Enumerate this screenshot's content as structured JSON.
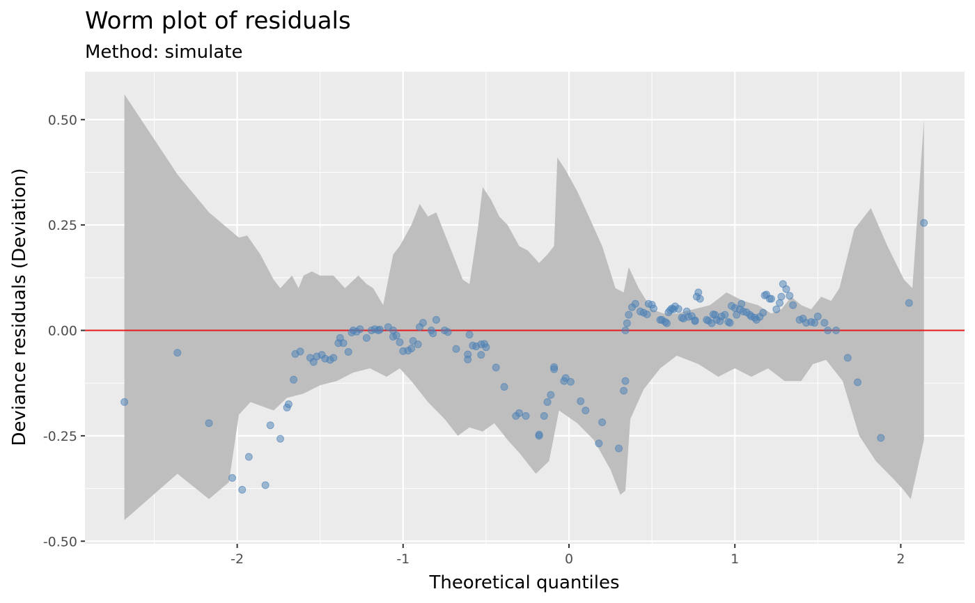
{
  "chart_data": {
    "type": "scatter",
    "title": "Worm plot of residuals",
    "subtitle": "Method: simulate",
    "xlabel": "Theoretical quantiles",
    "ylabel": "Deviance residuals (Deviation)",
    "xlim": [
      -2.9,
      2.4
    ],
    "ylim": [
      -0.5,
      0.61
    ],
    "x_ticks": [
      {
        "value": -2,
        "label": "-2"
      },
      {
        "value": -1,
        "label": "-1"
      },
      {
        "value": 0,
        "label": "0"
      },
      {
        "value": 1,
        "label": "1"
      },
      {
        "value": 2,
        "label": "2"
      }
    ],
    "y_ticks": [
      {
        "value": -0.5,
        "label": "-0.50"
      },
      {
        "value": -0.25,
        "label": "-0.25"
      },
      {
        "value": 0,
        "label": "0.00"
      },
      {
        "value": 0.25,
        "label": "0.25"
      },
      {
        "value": 0.5,
        "label": "0.50"
      }
    ],
    "grid": true,
    "reference_line": {
      "y": 0,
      "color": "#e31a1c"
    },
    "colors": {
      "panel": "#ebebeb",
      "grid": "#ffffff",
      "points": "#4a7fb5",
      "band": "#bebebe"
    },
    "band_upper": [
      [
        -2.68,
        0.56
      ],
      [
        -2.36,
        0.37
      ],
      [
        -2.17,
        0.28
      ],
      [
        -1.99,
        0.22
      ],
      [
        -1.94,
        0.225
      ],
      [
        -1.86,
        0.18
      ],
      [
        -1.78,
        0.12
      ],
      [
        -1.74,
        0.1
      ],
      [
        -1.67,
        0.13
      ],
      [
        -1.63,
        0.1
      ],
      [
        -1.6,
        0.13
      ],
      [
        -1.55,
        0.14
      ],
      [
        -1.5,
        0.13
      ],
      [
        -1.42,
        0.13
      ],
      [
        -1.35,
        0.1
      ],
      [
        -1.27,
        0.13
      ],
      [
        -1.22,
        0.11
      ],
      [
        -1.18,
        0.1
      ],
      [
        -1.12,
        0.06
      ],
      [
        -1.06,
        0.18
      ],
      [
        -1.02,
        0.2
      ],
      [
        -0.95,
        0.25
      ],
      [
        -0.9,
        0.3
      ],
      [
        -0.85,
        0.27
      ],
      [
        -0.8,
        0.28
      ],
      [
        -0.72,
        0.2
      ],
      [
        -0.64,
        0.12
      ],
      [
        -0.6,
        0.11
      ],
      [
        -0.55,
        0.24
      ],
      [
        -0.52,
        0.34
      ],
      [
        -0.47,
        0.31
      ],
      [
        -0.42,
        0.27
      ],
      [
        -0.37,
        0.25
      ],
      [
        -0.3,
        0.2
      ],
      [
        -0.25,
        0.19
      ],
      [
        -0.18,
        0.16
      ],
      [
        -0.13,
        0.18
      ],
      [
        -0.09,
        0.2
      ],
      [
        -0.07,
        0.41
      ],
      [
        -0.02,
        0.38
      ],
      [
        0.05,
        0.33
      ],
      [
        0.12,
        0.27
      ],
      [
        0.2,
        0.2
      ],
      [
        0.28,
        0.1
      ],
      [
        0.33,
        0.09
      ],
      [
        0.36,
        0.15
      ],
      [
        0.42,
        0.1
      ],
      [
        0.5,
        0.05
      ],
      [
        0.57,
        0.04
      ],
      [
        0.65,
        0.04
      ],
      [
        0.75,
        0.05
      ],
      [
        0.85,
        0.06
      ],
      [
        0.95,
        0.09
      ],
      [
        1.05,
        0.07
      ],
      [
        1.14,
        0.06
      ],
      [
        1.22,
        0.04
      ],
      [
        1.28,
        0.05
      ],
      [
        1.34,
        0.08
      ],
      [
        1.4,
        0.06
      ],
      [
        1.46,
        0.05
      ],
      [
        1.52,
        0.08
      ],
      [
        1.58,
        0.07
      ],
      [
        1.63,
        0.1
      ],
      [
        1.72,
        0.24
      ],
      [
        1.82,
        0.29
      ],
      [
        1.92,
        0.2
      ],
      [
        2.02,
        0.12
      ],
      [
        2.07,
        0.1
      ],
      [
        2.14,
        0.5
      ]
    ],
    "band_lower": [
      [
        -2.68,
        -0.45
      ],
      [
        -2.36,
        -0.34
      ],
      [
        -2.17,
        -0.4
      ],
      [
        -2.05,
        -0.36
      ],
      [
        -1.99,
        -0.2
      ],
      [
        -1.92,
        -0.17
      ],
      [
        -1.85,
        -0.18
      ],
      [
        -1.78,
        -0.19
      ],
      [
        -1.7,
        -0.16
      ],
      [
        -1.6,
        -0.15
      ],
      [
        -1.5,
        -0.13
      ],
      [
        -1.4,
        -0.12
      ],
      [
        -1.3,
        -0.1
      ],
      [
        -1.2,
        -0.09
      ],
      [
        -1.1,
        -0.11
      ],
      [
        -1.02,
        -0.09
      ],
      [
        -0.95,
        -0.12
      ],
      [
        -0.85,
        -0.17
      ],
      [
        -0.75,
        -0.21
      ],
      [
        -0.67,
        -0.25
      ],
      [
        -0.6,
        -0.23
      ],
      [
        -0.52,
        -0.24
      ],
      [
        -0.45,
        -0.22
      ],
      [
        -0.37,
        -0.26
      ],
      [
        -0.3,
        -0.29
      ],
      [
        -0.2,
        -0.34
      ],
      [
        -0.12,
        -0.31
      ],
      [
        -0.06,
        -0.19
      ],
      [
        0.05,
        -0.22
      ],
      [
        0.15,
        -0.26
      ],
      [
        0.25,
        -0.33
      ],
      [
        0.31,
        -0.39
      ],
      [
        0.34,
        -0.38
      ],
      [
        0.37,
        -0.21
      ],
      [
        0.45,
        -0.14
      ],
      [
        0.55,
        -0.09
      ],
      [
        0.65,
        -0.06
      ],
      [
        0.78,
        -0.08
      ],
      [
        0.9,
        -0.11
      ],
      [
        1.0,
        -0.09
      ],
      [
        1.1,
        -0.11
      ],
      [
        1.2,
        -0.09
      ],
      [
        1.3,
        -0.12
      ],
      [
        1.4,
        -0.12
      ],
      [
        1.47,
        -0.08
      ],
      [
        1.55,
        -0.07
      ],
      [
        1.65,
        -0.12
      ],
      [
        1.75,
        -0.25
      ],
      [
        1.85,
        -0.31
      ],
      [
        1.95,
        -0.35
      ],
      [
        2.02,
        -0.38
      ],
      [
        2.06,
        -0.4
      ],
      [
        2.1,
        -0.33
      ],
      [
        2.14,
        -0.26
      ]
    ],
    "points": [
      [
        -2.68,
        -0.17
      ],
      [
        -2.36,
        -0.053
      ],
      [
        -2.17,
        -0.22
      ],
      [
        -2.03,
        -0.35
      ],
      [
        -1.97,
        -0.378
      ],
      [
        -1.93,
        -0.3
      ],
      [
        -1.83,
        -0.367
      ],
      [
        -1.8,
        -0.225
      ],
      [
        -1.74,
        -0.257
      ],
      [
        -1.7,
        -0.183
      ],
      [
        -1.69,
        -0.175
      ],
      [
        -1.66,
        -0.117
      ],
      [
        -1.65,
        -0.056
      ],
      [
        -1.62,
        -0.05
      ],
      [
        -1.56,
        -0.065
      ],
      [
        -1.54,
        -0.075
      ],
      [
        -1.52,
        -0.062
      ],
      [
        -1.49,
        -0.058
      ],
      [
        -1.47,
        -0.067
      ],
      [
        -1.44,
        -0.07
      ],
      [
        -1.42,
        -0.065
      ],
      [
        -1.39,
        -0.03
      ],
      [
        -1.38,
        -0.018
      ],
      [
        -1.36,
        -0.03
      ],
      [
        -1.33,
        -0.051
      ],
      [
        -1.31,
        -0.005
      ],
      [
        -1.3,
        0.0
      ],
      [
        -1.28,
        -0.003
      ],
      [
        -1.26,
        0.003
      ],
      [
        -1.22,
        -0.018
      ],
      [
        -1.19,
        0.0
      ],
      [
        -1.17,
        0.003
      ],
      [
        -1.15,
        0.0
      ],
      [
        -1.14,
        0.002
      ],
      [
        -1.09,
        0.008
      ],
      [
        -1.06,
        -0.015
      ],
      [
        -1.06,
        0.0
      ],
      [
        -1.04,
        -0.012
      ],
      [
        -1.02,
        -0.028
      ],
      [
        -1.0,
        -0.049
      ],
      [
        -0.97,
        -0.048
      ],
      [
        -0.95,
        -0.043
      ],
      [
        -0.94,
        -0.025
      ],
      [
        -0.91,
        -0.033
      ],
      [
        -0.9,
        0.008
      ],
      [
        -0.88,
        0.018
      ],
      [
        -0.83,
        0.0
      ],
      [
        -0.82,
        -0.007
      ],
      [
        -0.8,
        0.025
      ],
      [
        -0.75,
        0.0
      ],
      [
        -0.73,
        -0.004
      ],
      [
        -0.68,
        -0.044
      ],
      [
        -0.61,
        -0.057
      ],
      [
        -0.61,
        -0.069
      ],
      [
        -0.6,
        -0.01
      ],
      [
        -0.58,
        -0.036
      ],
      [
        -0.56,
        -0.038
      ],
      [
        -0.53,
        -0.058
      ],
      [
        -0.53,
        -0.033
      ],
      [
        -0.51,
        -0.032
      ],
      [
        -0.5,
        -0.04
      ],
      [
        -0.44,
        -0.088
      ],
      [
        -0.39,
        -0.134
      ],
      [
        -0.32,
        -0.203
      ],
      [
        -0.3,
        -0.196
      ],
      [
        -0.26,
        -0.203
      ],
      [
        -0.18,
        -0.25
      ],
      [
        -0.18,
        -0.247
      ],
      [
        -0.15,
        -0.203
      ],
      [
        -0.13,
        -0.17
      ],
      [
        -0.11,
        -0.153
      ],
      [
        -0.09,
        -0.087
      ],
      [
        -0.09,
        -0.092
      ],
      [
        -0.03,
        -0.12
      ],
      [
        -0.02,
        -0.113
      ],
      [
        0.01,
        -0.122
      ],
      [
        0.07,
        -0.168
      ],
      [
        0.1,
        -0.19
      ],
      [
        0.18,
        -0.268
      ],
      [
        0.2,
        -0.218
      ],
      [
        0.3,
        -0.28
      ],
      [
        0.33,
        -0.143
      ],
      [
        0.34,
        -0.12
      ],
      [
        0.34,
        0.0
      ],
      [
        0.35,
        0.017
      ],
      [
        0.36,
        0.037
      ],
      [
        0.38,
        0.055
      ],
      [
        0.4,
        0.063
      ],
      [
        0.43,
        0.045
      ],
      [
        0.45,
        0.042
      ],
      [
        0.47,
        0.038
      ],
      [
        0.48,
        0.063
      ],
      [
        0.5,
        0.061
      ],
      [
        0.51,
        0.052
      ],
      [
        0.55,
        0.025
      ],
      [
        0.56,
        0.025
      ],
      [
        0.58,
        0.02
      ],
      [
        0.59,
        0.017
      ],
      [
        0.6,
        0.043
      ],
      [
        0.61,
        0.048
      ],
      [
        0.62,
        0.052
      ],
      [
        0.63,
        0.05
      ],
      [
        0.64,
        0.057
      ],
      [
        0.66,
        0.051
      ],
      [
        0.68,
        0.03
      ],
      [
        0.69,
        0.028
      ],
      [
        0.71,
        0.045
      ],
      [
        0.72,
        0.032
      ],
      [
        0.74,
        0.034
      ],
      [
        0.76,
        0.024
      ],
      [
        0.76,
        0.022
      ],
      [
        0.77,
        0.08
      ],
      [
        0.78,
        0.09
      ],
      [
        0.79,
        0.075
      ],
      [
        0.83,
        0.025
      ],
      [
        0.84,
        0.023
      ],
      [
        0.86,
        0.017
      ],
      [
        0.87,
        0.038
      ],
      [
        0.88,
        0.037
      ],
      [
        0.89,
        0.025
      ],
      [
        0.91,
        0.022
      ],
      [
        0.92,
        0.033
      ],
      [
        0.94,
        0.037
      ],
      [
        0.96,
        0.02
      ],
      [
        0.97,
        0.018
      ],
      [
        0.98,
        0.058
      ],
      [
        1.0,
        0.053
      ],
      [
        1.01,
        0.037
      ],
      [
        1.03,
        0.05
      ],
      [
        1.04,
        0.063
      ],
      [
        1.05,
        0.045
      ],
      [
        1.07,
        0.043
      ],
      [
        1.09,
        0.037
      ],
      [
        1.1,
        0.033
      ],
      [
        1.12,
        0.03
      ],
      [
        1.13,
        0.025
      ],
      [
        1.15,
        0.032
      ],
      [
        1.17,
        0.042
      ],
      [
        1.18,
        0.083
      ],
      [
        1.19,
        0.085
      ],
      [
        1.21,
        0.075
      ],
      [
        1.22,
        0.075
      ],
      [
        1.25,
        0.05
      ],
      [
        1.27,
        0.065
      ],
      [
        1.28,
        0.08
      ],
      [
        1.29,
        0.11
      ],
      [
        1.31,
        0.098
      ],
      [
        1.33,
        0.082
      ],
      [
        1.35,
        0.06
      ],
      [
        1.39,
        0.025
      ],
      [
        1.41,
        0.028
      ],
      [
        1.43,
        0.018
      ],
      [
        1.46,
        0.02
      ],
      [
        1.48,
        0.018
      ],
      [
        1.5,
        0.033
      ],
      [
        1.54,
        0.018
      ],
      [
        1.56,
        0.0
      ],
      [
        1.61,
        0.0
      ],
      [
        1.68,
        -0.065
      ],
      [
        1.74,
        -0.123
      ],
      [
        1.88,
        -0.255
      ],
      [
        2.05,
        0.065
      ],
      [
        2.14,
        0.255
      ]
    ]
  }
}
